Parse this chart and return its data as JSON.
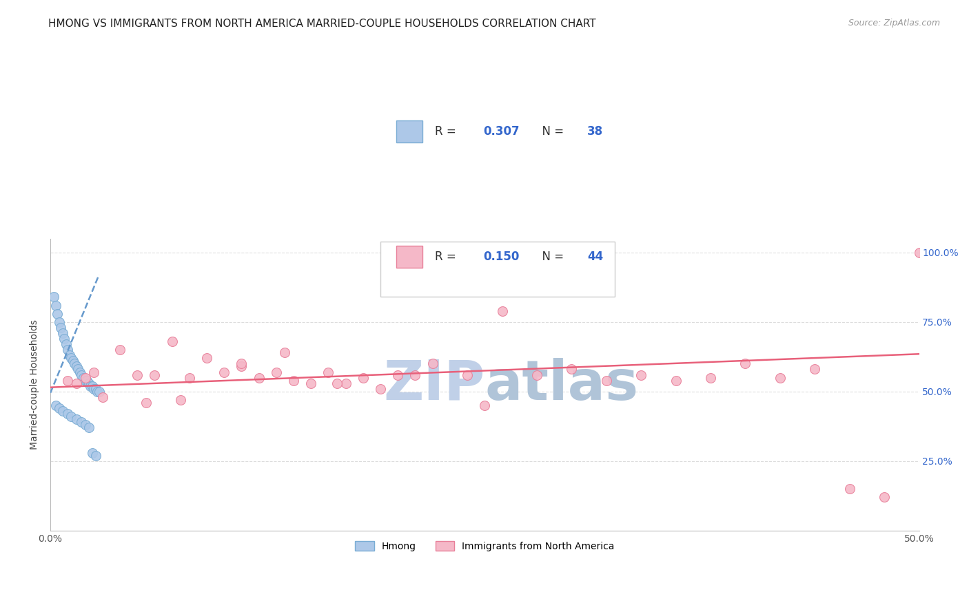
{
  "title": "HMONG VS IMMIGRANTS FROM NORTH AMERICA MARRIED-COUPLE HOUSEHOLDS CORRELATION CHART",
  "source": "Source: ZipAtlas.com",
  "ylabel": "Married-couple Households",
  "xlim": [
    0.0,
    0.5
  ],
  "ylim": [
    0.0,
    1.05
  ],
  "yticks": [
    0.25,
    0.5,
    0.75,
    1.0
  ],
  "ytick_labels": [
    "25.0%",
    "50.0%",
    "75.0%",
    "100.0%"
  ],
  "xticks": [
    0.0,
    0.1,
    0.2,
    0.3,
    0.4,
    0.5
  ],
  "xtick_labels": [
    "0.0%",
    "",
    "",
    "",
    "",
    "50.0%"
  ],
  "legend_r1": "0.307",
  "legend_n1": "38",
  "legend_r2": "0.150",
  "legend_n2": "44",
  "hmong_color": "#adc8e8",
  "hmong_edge_color": "#7aadd4",
  "north_america_color": "#f5b8c8",
  "north_america_edge_color": "#e8809a",
  "trend_hmong_color": "#6699cc",
  "trend_na_color": "#e8607a",
  "watermark_zip_color": "#c0d0e8",
  "watermark_atlas_color": "#b0c4d8",
  "background_color": "#ffffff",
  "grid_color": "#dddddd",
  "hmong_x": [
    0.002,
    0.003,
    0.004,
    0.005,
    0.006,
    0.007,
    0.008,
    0.009,
    0.01,
    0.011,
    0.012,
    0.013,
    0.014,
    0.015,
    0.016,
    0.017,
    0.018,
    0.019,
    0.02,
    0.021,
    0.022,
    0.023,
    0.024,
    0.025,
    0.026,
    0.027,
    0.028,
    0.003,
    0.005,
    0.007,
    0.01,
    0.012,
    0.015,
    0.018,
    0.02,
    0.022,
    0.024,
    0.026
  ],
  "hmong_y": [
    0.84,
    0.81,
    0.78,
    0.75,
    0.73,
    0.71,
    0.69,
    0.67,
    0.65,
    0.63,
    0.62,
    0.61,
    0.6,
    0.59,
    0.58,
    0.57,
    0.56,
    0.55,
    0.54,
    0.54,
    0.53,
    0.52,
    0.52,
    0.51,
    0.51,
    0.5,
    0.5,
    0.45,
    0.44,
    0.43,
    0.42,
    0.41,
    0.4,
    0.39,
    0.38,
    0.37,
    0.28,
    0.27
  ],
  "na_x": [
    0.01,
    0.015,
    0.02,
    0.025,
    0.04,
    0.05,
    0.06,
    0.07,
    0.08,
    0.09,
    0.1,
    0.11,
    0.12,
    0.13,
    0.14,
    0.15,
    0.16,
    0.17,
    0.18,
    0.19,
    0.2,
    0.21,
    0.22,
    0.24,
    0.26,
    0.28,
    0.3,
    0.32,
    0.34,
    0.36,
    0.38,
    0.4,
    0.42,
    0.44,
    0.46,
    0.48,
    0.5,
    0.03,
    0.055,
    0.075,
    0.11,
    0.135,
    0.165,
    0.25
  ],
  "na_y": [
    0.54,
    0.53,
    0.55,
    0.57,
    0.65,
    0.56,
    0.56,
    0.68,
    0.55,
    0.62,
    0.57,
    0.59,
    0.55,
    0.57,
    0.54,
    0.53,
    0.57,
    0.53,
    0.55,
    0.51,
    0.56,
    0.56,
    0.6,
    0.56,
    0.79,
    0.56,
    0.58,
    0.54,
    0.56,
    0.54,
    0.55,
    0.6,
    0.55,
    0.58,
    0.15,
    0.12,
    1.0,
    0.48,
    0.46,
    0.47,
    0.6,
    0.64,
    0.53,
    0.45
  ],
  "hmong_trend_x": [
    0.0,
    0.028
  ],
  "hmong_trend_y": [
    0.495,
    0.92
  ],
  "na_trend_x": [
    0.0,
    0.5
  ],
  "na_trend_y": [
    0.515,
    0.635
  ],
  "title_fontsize": 11,
  "label_fontsize": 10,
  "tick_fontsize": 10,
  "marker_size": 100
}
